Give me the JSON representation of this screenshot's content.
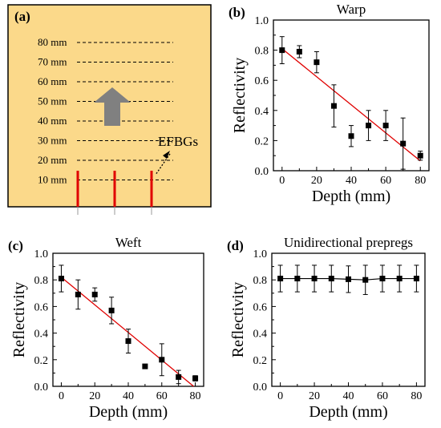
{
  "panel_a": {
    "letter": "(a)",
    "depth_labels": [
      "80 mm",
      "70 mm",
      "60 mm",
      "50 mm",
      "40 mm",
      "30 mm",
      "20 mm",
      "10 mm"
    ],
    "efbg_label": "EFBGs",
    "colors": {
      "background": "#fbd98a",
      "border": "#000000",
      "arrow": "#808080",
      "fbg": "#e00000"
    }
  },
  "chart_data": [
    {
      "id": "b",
      "letter": "(b)",
      "type": "scatter",
      "title": "Warp",
      "xlabel": "Depth (mm)",
      "ylabel": "Reflectivity",
      "xlim": [
        -5,
        85
      ],
      "ylim": [
        0,
        1.0
      ],
      "xticks": [
        0,
        20,
        40,
        60,
        80
      ],
      "yticks": [
        0.0,
        0.2,
        0.4,
        0.6,
        0.8,
        1.0
      ],
      "x": [
        0,
        10,
        20,
        30,
        40,
        50,
        60,
        70,
        80
      ],
      "y": [
        0.8,
        0.79,
        0.72,
        0.43,
        0.23,
        0.3,
        0.3,
        0.18,
        0.1
      ],
      "err": [
        0.09,
        0.04,
        0.07,
        0.14,
        0.07,
        0.1,
        0.1,
        0.17,
        0.03
      ],
      "fit": {
        "x": [
          0,
          80
        ],
        "y": [
          0.81,
          0.065
        ]
      },
      "connect": false,
      "grid": false
    },
    {
      "id": "c",
      "letter": "(c)",
      "type": "scatter",
      "title": "Weft",
      "xlabel": "Depth (mm)",
      "ylabel": "Reflectivity",
      "xlim": [
        -5,
        85
      ],
      "ylim": [
        0,
        1.0
      ],
      "xticks": [
        0,
        20,
        40,
        60,
        80
      ],
      "yticks": [
        0.0,
        0.2,
        0.4,
        0.6,
        0.8,
        1.0
      ],
      "x": [
        0,
        10,
        20,
        30,
        40,
        50,
        60,
        70,
        80
      ],
      "y": [
        0.81,
        0.69,
        0.69,
        0.57,
        0.34,
        0.15,
        0.2,
        0.07,
        0.06
      ],
      "err": [
        0.1,
        0.11,
        0.05,
        0.1,
        0.09,
        0.0,
        0.12,
        0.05,
        0.02
      ],
      "fit": {
        "x": [
          0,
          79
        ],
        "y": [
          0.82,
          0.0
        ]
      },
      "connect": false,
      "grid": false
    },
    {
      "id": "d",
      "letter": "(d)",
      "type": "line",
      "title": "Unidirectional prepregs",
      "xlabel": "Depth (mm)",
      "ylabel": "Reflectivity",
      "xlim": [
        -5,
        85
      ],
      "ylim": [
        0,
        1.0
      ],
      "xticks": [
        0,
        20,
        40,
        60,
        80
      ],
      "yticks": [
        0.0,
        0.2,
        0.4,
        0.6,
        0.8,
        1.0
      ],
      "x": [
        0,
        10,
        20,
        30,
        40,
        50,
        60,
        70,
        80
      ],
      "y": [
        0.81,
        0.81,
        0.81,
        0.81,
        0.805,
        0.8,
        0.81,
        0.81,
        0.81
      ],
      "err": [
        0.1,
        0.1,
        0.1,
        0.1,
        0.1,
        0.11,
        0.1,
        0.1,
        0.1
      ],
      "fit": null,
      "connect": true,
      "grid": false
    }
  ]
}
